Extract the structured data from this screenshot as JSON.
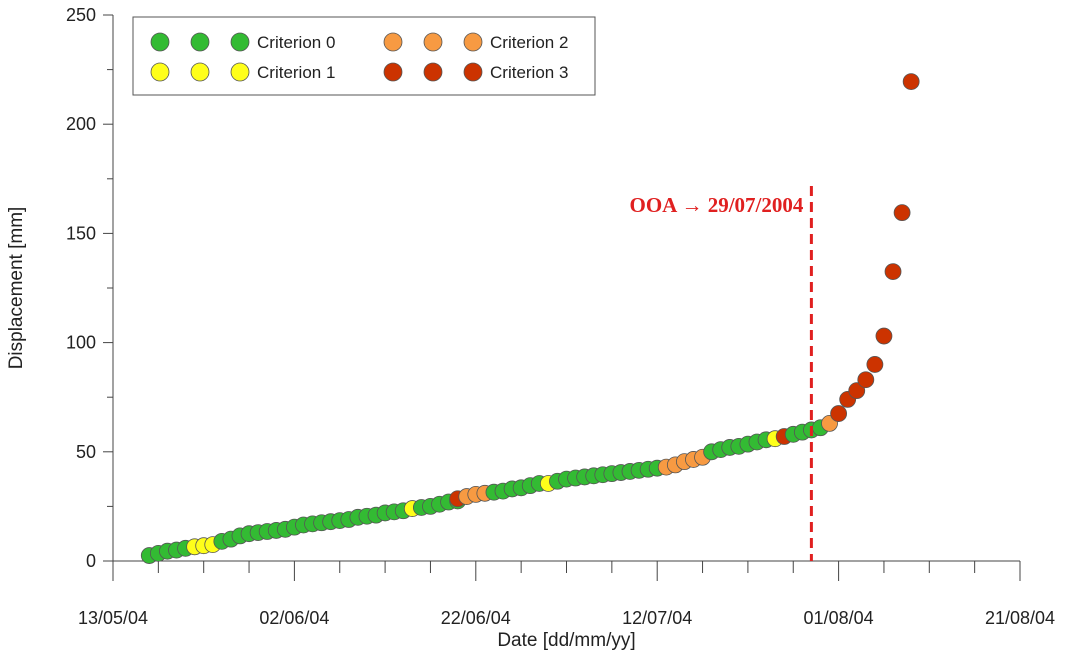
{
  "chart_data": {
    "type": "scatter",
    "title": "",
    "xlabel": "Date [dd/mm/yy]",
    "ylabel": "Displacement [mm]",
    "xlim": [
      "2004-05-13",
      "2004-08-21"
    ],
    "ylim": [
      0,
      250
    ],
    "x_tick_labels": [
      "13/05/04",
      "02/06/04",
      "22/06/04",
      "12/07/04",
      "01/08/04",
      "21/08/04"
    ],
    "x_ticks": [
      "2004-05-13",
      "2004-06-02",
      "2004-06-22",
      "2004-07-12",
      "2004-08-01",
      "2004-08-21"
    ],
    "y_ticks": [
      0,
      50,
      100,
      150,
      200,
      250
    ],
    "grid": false,
    "legend_position": "top-left",
    "legend": [
      {
        "label": "Criterion 0",
        "color": "#33BB33"
      },
      {
        "label": "Criterion 1",
        "color": "#FFFF1A"
      },
      {
        "label": "Criterion 2",
        "color": "#F79A42"
      },
      {
        "label": "Criterion 3",
        "color": "#CC3300"
      }
    ],
    "annotation": {
      "text": "OOA → 29/07/2004",
      "x": "2004-07-29",
      "color": "#E02020"
    },
    "series": [
      {
        "name": "Criterion 0",
        "color": "#33BB33",
        "points": [
          [
            "2004-05-17",
            2.5
          ],
          [
            "2004-05-18",
            3.5
          ],
          [
            "2004-05-19",
            4.5
          ],
          [
            "2004-05-20",
            5.0
          ],
          [
            "2004-05-21",
            5.8
          ],
          [
            "2004-05-25",
            9.0
          ],
          [
            "2004-05-26",
            10.0
          ],
          [
            "2004-05-27",
            11.5
          ],
          [
            "2004-05-28",
            12.5
          ],
          [
            "2004-05-29",
            13.0
          ],
          [
            "2004-05-30",
            13.5
          ],
          [
            "2004-05-31",
            14.0
          ],
          [
            "2004-06-01",
            14.5
          ],
          [
            "2004-06-02",
            15.5
          ],
          [
            "2004-06-03",
            16.5
          ],
          [
            "2004-06-04",
            17.0
          ],
          [
            "2004-06-05",
            17.5
          ],
          [
            "2004-06-06",
            18.0
          ],
          [
            "2004-06-07",
            18.5
          ],
          [
            "2004-06-08",
            19.0
          ],
          [
            "2004-06-09",
            20.0
          ],
          [
            "2004-06-10",
            20.5
          ],
          [
            "2004-06-11",
            21.0
          ],
          [
            "2004-06-12",
            22.0
          ],
          [
            "2004-06-13",
            22.5
          ],
          [
            "2004-06-14",
            23.0
          ],
          [
            "2004-06-16",
            24.5
          ],
          [
            "2004-06-17",
            25.0
          ],
          [
            "2004-06-18",
            26.0
          ],
          [
            "2004-06-19",
            27.0
          ],
          [
            "2004-06-20",
            27.5
          ],
          [
            "2004-06-24",
            31.5
          ],
          [
            "2004-06-25",
            32.0
          ],
          [
            "2004-06-26",
            33.0
          ],
          [
            "2004-06-27",
            33.5
          ],
          [
            "2004-06-28",
            34.5
          ],
          [
            "2004-06-29",
            35.5
          ],
          [
            "2004-07-01",
            36.5
          ],
          [
            "2004-07-02",
            37.5
          ],
          [
            "2004-07-03",
            38.0
          ],
          [
            "2004-07-04",
            38.5
          ],
          [
            "2004-07-05",
            39.0
          ],
          [
            "2004-07-06",
            39.5
          ],
          [
            "2004-07-07",
            40.0
          ],
          [
            "2004-07-08",
            40.5
          ],
          [
            "2004-07-09",
            41.0
          ],
          [
            "2004-07-10",
            41.5
          ],
          [
            "2004-07-11",
            42.0
          ],
          [
            "2004-07-12",
            42.5
          ],
          [
            "2004-07-18",
            50.0
          ],
          [
            "2004-07-19",
            51.0
          ],
          [
            "2004-07-20",
            52.0
          ],
          [
            "2004-07-21",
            52.5
          ],
          [
            "2004-07-22",
            53.5
          ],
          [
            "2004-07-23",
            54.5
          ],
          [
            "2004-07-24",
            55.5
          ],
          [
            "2004-07-27",
            58.0
          ],
          [
            "2004-07-28",
            59.0
          ],
          [
            "2004-07-29",
            60.0
          ],
          [
            "2004-07-30",
            61.0
          ]
        ]
      },
      {
        "name": "Criterion 1",
        "color": "#FFFF1A",
        "points": [
          [
            "2004-05-22",
            6.5
          ],
          [
            "2004-05-23",
            7.0
          ],
          [
            "2004-05-24",
            7.5
          ],
          [
            "2004-06-15",
            24.0
          ],
          [
            "2004-06-30",
            35.5
          ],
          [
            "2004-07-25",
            56.0
          ]
        ]
      },
      {
        "name": "Criterion 2",
        "color": "#F79A42",
        "points": [
          [
            "2004-06-21",
            29.5
          ],
          [
            "2004-06-22",
            30.5
          ],
          [
            "2004-06-23",
            31.0
          ],
          [
            "2004-07-13",
            43.0
          ],
          [
            "2004-07-14",
            44.0
          ],
          [
            "2004-07-15",
            45.5
          ],
          [
            "2004-07-16",
            46.5
          ],
          [
            "2004-07-17",
            47.5
          ],
          [
            "2004-07-31",
            63.0
          ]
        ]
      },
      {
        "name": "Criterion 3",
        "color": "#CC3300",
        "points": [
          [
            "2004-06-20",
            28.5
          ],
          [
            "2004-07-26",
            57.0
          ],
          [
            "2004-08-01",
            67.5
          ],
          [
            "2004-08-02",
            74.0
          ],
          [
            "2004-08-03",
            78.0
          ],
          [
            "2004-08-04",
            83.0
          ],
          [
            "2004-08-05",
            90.0
          ],
          [
            "2004-08-06",
            103.0
          ],
          [
            "2004-08-07",
            132.5
          ],
          [
            "2004-08-08",
            159.5
          ],
          [
            "2004-08-09",
            219.5
          ]
        ]
      }
    ]
  }
}
